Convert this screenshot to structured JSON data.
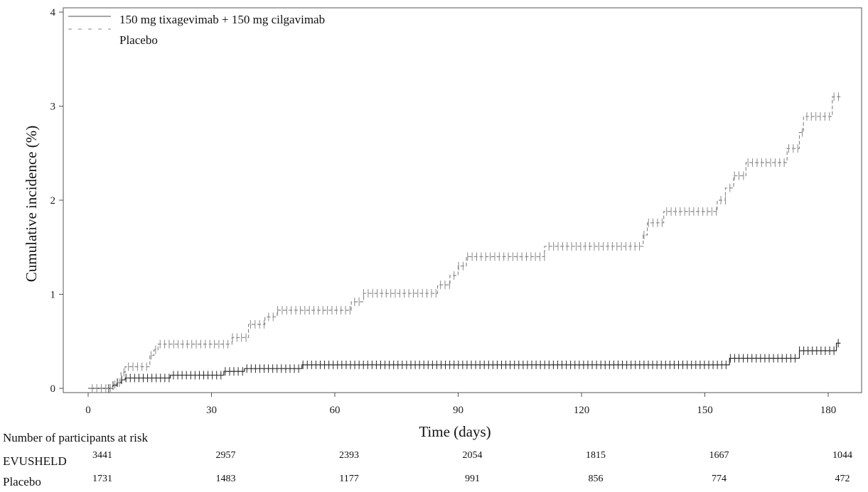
{
  "chart_data": {
    "type": "line",
    "title": "",
    "xlabel": "Time (days)",
    "ylabel": "Cumulative incidence (%)",
    "xlim": [
      0,
      183
    ],
    "ylim": [
      0,
      4
    ],
    "xticks": [
      0,
      30,
      60,
      90,
      120,
      150,
      180
    ],
    "yticks": [
      0,
      1,
      2,
      3,
      4
    ],
    "grid": false,
    "legend_position": "top-left",
    "series": [
      {
        "name": "150 mg tixagevimab + 150 mg cilgavimab",
        "style": "solid",
        "color": "#2a2a2a",
        "steps": [
          [
            0,
            0
          ],
          [
            6,
            0.03
          ],
          [
            7,
            0.06
          ],
          [
            8,
            0.09
          ],
          [
            9,
            0.11
          ],
          [
            20,
            0.14
          ],
          [
            33,
            0.18
          ],
          [
            38,
            0.21
          ],
          [
            52,
            0.25
          ],
          [
            156,
            0.32
          ],
          [
            173,
            0.4
          ],
          [
            182,
            0.48
          ],
          [
            183,
            0.48
          ]
        ],
        "censor_start": 5,
        "censor_step": 1.05
      },
      {
        "name": "Placebo",
        "style": "dashed",
        "color": "#8a8a8a",
        "steps": [
          [
            0,
            0
          ],
          [
            6,
            0.04
          ],
          [
            7,
            0.06
          ],
          [
            8,
            0.17
          ],
          [
            9,
            0.23
          ],
          [
            15,
            0.35
          ],
          [
            16,
            0.41
          ],
          [
            17,
            0.47
          ],
          [
            35,
            0.54
          ],
          [
            39,
            0.68
          ],
          [
            43,
            0.76
          ],
          [
            46,
            0.83
          ],
          [
            64,
            0.92
          ],
          [
            67,
            1.01
          ],
          [
            85,
            1.1
          ],
          [
            88,
            1.2
          ],
          [
            90,
            1.3
          ],
          [
            92,
            1.4
          ],
          [
            111,
            1.51
          ],
          [
            135,
            1.63
          ],
          [
            136,
            1.76
          ],
          [
            140,
            1.88
          ],
          [
            153,
            2.0
          ],
          [
            155,
            2.13
          ],
          [
            157,
            2.26
          ],
          [
            160,
            2.4
          ],
          [
            170,
            2.55
          ],
          [
            173,
            2.72
          ],
          [
            174,
            2.89
          ],
          [
            181,
            3.1
          ],
          [
            183,
            3.1
          ]
        ],
        "censor_start": 1,
        "censor_step": 1.1
      }
    ],
    "risk_table": {
      "title": "Number of participants at risk",
      "times": [
        0,
        30,
        60,
        90,
        120,
        150,
        180
      ],
      "rows": [
        {
          "label": "EVUSHELD",
          "values": [
            "3441",
            "2957",
            "2393",
            "2054",
            "1815",
            "1667",
            "1044"
          ]
        },
        {
          "label": "Placebo",
          "values": [
            "1731",
            "1483",
            "1177",
            "991",
            "856",
            "774",
            "472"
          ]
        }
      ]
    }
  }
}
